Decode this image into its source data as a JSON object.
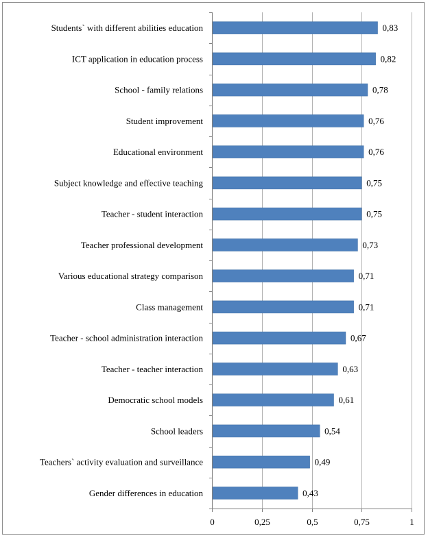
{
  "chart_data": {
    "type": "bar",
    "orientation": "horizontal",
    "title": "",
    "xlabel": "",
    "ylabel": "",
    "xlim": [
      0,
      1
    ],
    "grid": true,
    "bar_color": "#4f81bd",
    "categories": [
      "Students` with different abilities education",
      "ICT application in education process",
      "School - family relations",
      "Student improvement",
      "Educational environment",
      "Subject knowledge and effective teaching",
      "Teacher - student interaction",
      "Teacher professional development",
      "Various educational strategy  comparison",
      "Class management",
      "Teacher - school administration interaction",
      "Teacher - teacher interaction",
      "Democratic school models",
      "School leaders",
      "Teachers` activity evaluation and surveillance",
      "Gender differences in education"
    ],
    "values": [
      0.83,
      0.82,
      0.78,
      0.76,
      0.76,
      0.75,
      0.75,
      0.73,
      0.71,
      0.71,
      0.67,
      0.63,
      0.61,
      0.54,
      0.49,
      0.43
    ],
    "value_labels": [
      "0,83",
      "0,82",
      "0,78",
      "0,76",
      "0,76",
      "0,75",
      "0,75",
      "0,73",
      "0,71",
      "0,71",
      "0,67",
      "0,63",
      "0,61",
      "0,54",
      "0,49",
      "0,43"
    ],
    "ticks": [
      0,
      0.25,
      0.5,
      0.75,
      1
    ],
    "tick_labels": [
      "0",
      "0,25",
      "0,5",
      "0,75",
      "1"
    ]
  }
}
